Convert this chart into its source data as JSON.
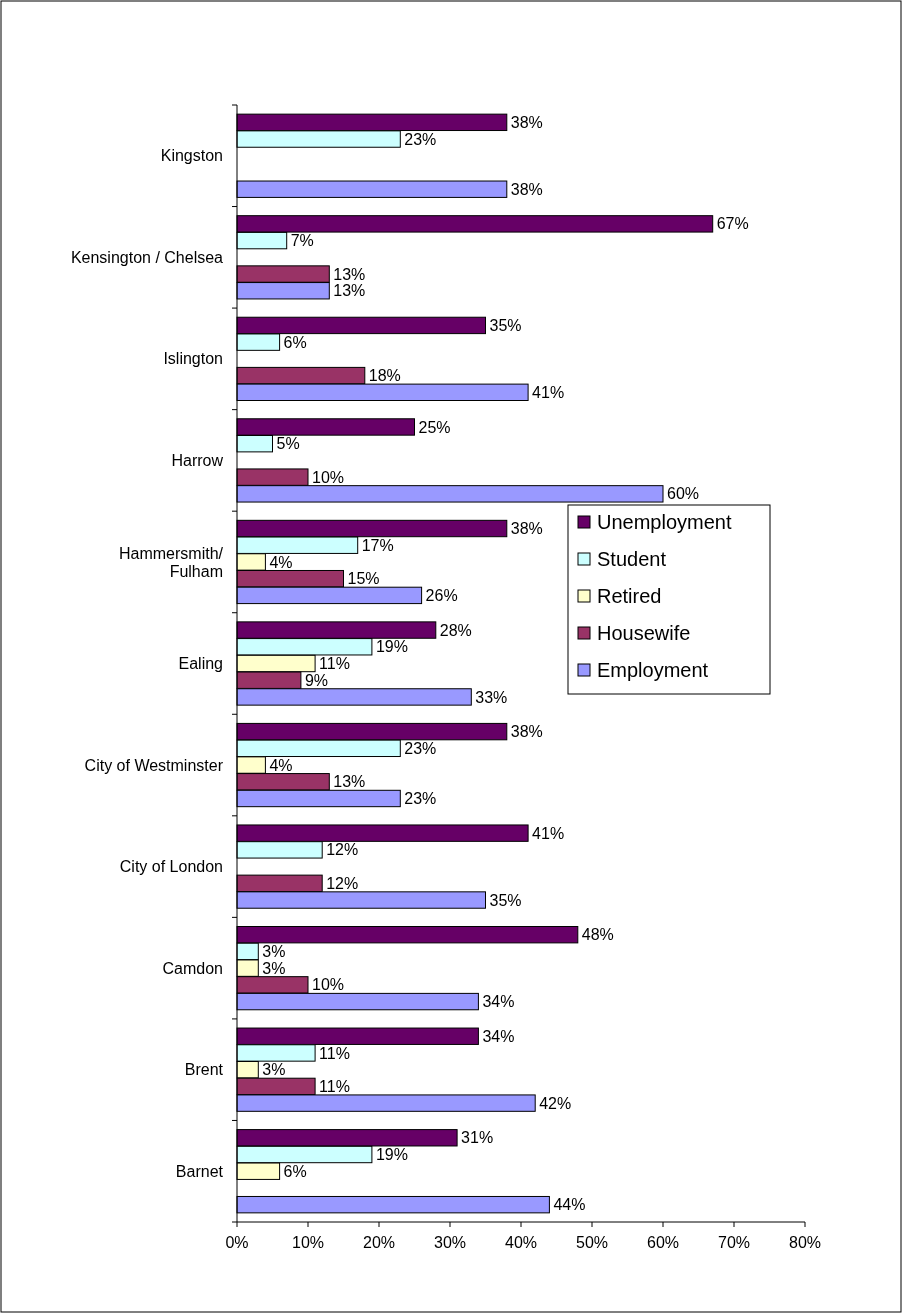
{
  "chart_data": {
    "type": "bar",
    "orientation": "horizontal",
    "categories": [
      "Kingston",
      "Kensington / Chelsea",
      "Islington",
      "Harrow",
      "Hammersmith/\nFulham",
      "Ealing",
      "City of Westminster",
      "City of London",
      "Camdon",
      "Brent",
      "Barnet"
    ],
    "series": [
      {
        "name": "Unemployment",
        "color": "#660066",
        "values": [
          38,
          67,
          35,
          25,
          38,
          28,
          38,
          41,
          48,
          34,
          31
        ],
        "value_labels": [
          "38%",
          "67%",
          "35%",
          "25%",
          "38%",
          "28%",
          "38%",
          "41%",
          "48%",
          "34%",
          "31%"
        ]
      },
      {
        "name": "Student",
        "color": "#ccffff",
        "values": [
          23,
          7,
          6,
          5,
          17,
          19,
          23,
          12,
          3,
          11,
          19
        ],
        "value_labels": [
          "23%",
          "7%",
          "6%",
          "5%",
          "17%",
          "19%",
          "23%",
          "12%",
          "3%",
          "11%",
          "19%"
        ]
      },
      {
        "name": "Retired",
        "color": "#ffffcc",
        "values": [
          null,
          null,
          null,
          null,
          4,
          11,
          4,
          null,
          3,
          3,
          6
        ],
        "value_labels": [
          null,
          null,
          null,
          null,
          "4%",
          "11%",
          "4%",
          null,
          "3%",
          "3%",
          "6%"
        ]
      },
      {
        "name": "Housewife",
        "color": "#993366",
        "values": [
          null,
          13,
          18,
          10,
          15,
          9,
          13,
          12,
          10,
          11,
          null
        ],
        "value_labels": [
          null,
          "13%",
          "18%",
          "10%",
          "15%",
          "9%",
          "13%",
          "12%",
          "10%",
          "11%",
          null
        ]
      },
      {
        "name": "Employment",
        "color": "#9999ff",
        "values": [
          38,
          13,
          41,
          60,
          26,
          33,
          23,
          35,
          34,
          42,
          44
        ],
        "value_labels": [
          "38%",
          "13%",
          "41%",
          "60%",
          "26%",
          "33%",
          "23%",
          "35%",
          "34%",
          "42%",
          "44%"
        ]
      }
    ],
    "xlim": [
      0,
      80
    ],
    "xticks": [
      {
        "value": 0,
        "label": "0%"
      },
      {
        "value": 10,
        "label": "10%"
      },
      {
        "value": 20,
        "label": "20%"
      },
      {
        "value": 30,
        "label": "30%"
      },
      {
        "value": 40,
        "label": "40%"
      },
      {
        "value": 50,
        "label": "50%"
      },
      {
        "value": 60,
        "label": "60%"
      },
      {
        "value": 70,
        "label": "70%"
      },
      {
        "value": 80,
        "label": "80%"
      }
    ],
    "legend": "right"
  }
}
